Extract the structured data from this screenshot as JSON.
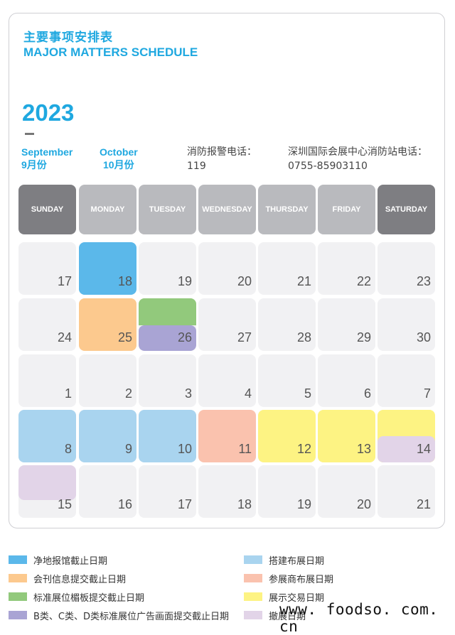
{
  "header": {
    "title_cn": "主要事项安排表",
    "title_en": "MAJOR MATTERS SCHEDULE",
    "year": "2023"
  },
  "months": [
    {
      "en": "September",
      "cn": "9月份"
    },
    {
      "en": "October",
      "cn": "10月份"
    }
  ],
  "phones": [
    {
      "label": "消防报警电话：",
      "number": "119"
    },
    {
      "label": "深圳国际会展中心消防站电话：",
      "number": "0755-85903110"
    }
  ],
  "weekdays": [
    "SUNDAY",
    "MONDAY",
    "TUESDAY",
    "WEDNESDAY",
    "THURSDAY",
    "FRIDAY",
    "SATURDAY"
  ],
  "weeks": [
    [
      "17",
      "18",
      "19",
      "20",
      "21",
      "22",
      "23"
    ],
    [
      "24",
      "25",
      "26",
      "27",
      "28",
      "29",
      "30"
    ],
    [
      "1",
      "2",
      "3",
      "4",
      "5",
      "6",
      "7"
    ],
    [
      "8",
      "9",
      "10",
      "11",
      "12",
      "13",
      "14"
    ],
    [
      "15",
      "16",
      "17",
      "18",
      "19",
      "20",
      "21"
    ]
  ],
  "legend": [
    {
      "label": "净地报馆截止日期",
      "color": "#5bb8ea"
    },
    {
      "label": "会刊信息提交截止日期",
      "color": "#fcc98e"
    },
    {
      "label": "标准展位楣板提交截止日期",
      "color": "#92c97c"
    },
    {
      "label": "B类、C类、D类标准展位广告画面提交截止日期",
      "color": "#a9a4d4"
    },
    {
      "label": "搭建布展日期",
      "color": "#a9d4ef"
    },
    {
      "label": "参展商布展日期",
      "color": "#fac2ae"
    },
    {
      "label": "展示交易日期",
      "color": "#fdf383"
    },
    {
      "label": "撤展日期",
      "color": "#e2d4e8"
    }
  ],
  "watermark": "www. foodso. com. cn"
}
